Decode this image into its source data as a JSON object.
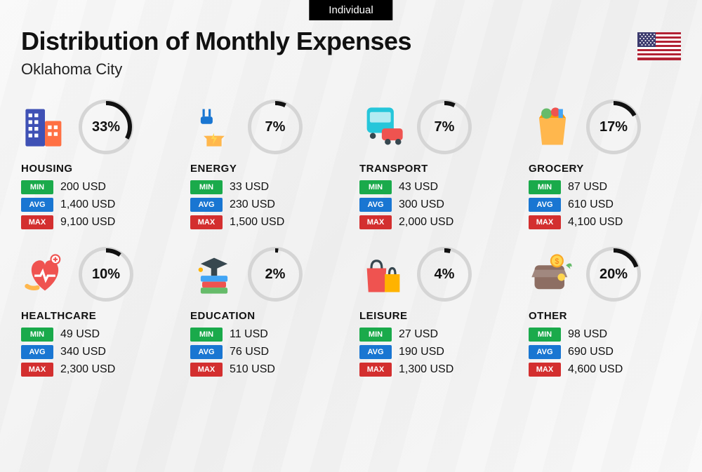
{
  "tab_label": "Individual",
  "title": "Distribution of Monthly Expenses",
  "subtitle": "Oklahoma City",
  "badge_labels": {
    "min": "MIN",
    "avg": "AVG",
    "max": "MAX"
  },
  "colors": {
    "ring_bg": "#d5d5d5",
    "ring_fg": "#111111",
    "badge_min": "#1aaa4b",
    "badge_avg": "#1976d2",
    "badge_max": "#d32f2f"
  },
  "categories": [
    {
      "name": "HOUSING",
      "pct": 33,
      "min": "200 USD",
      "avg": "1,400 USD",
      "max": "9,100 USD"
    },
    {
      "name": "ENERGY",
      "pct": 7,
      "min": "33 USD",
      "avg": "230 USD",
      "max": "1,500 USD"
    },
    {
      "name": "TRANSPORT",
      "pct": 7,
      "min": "43 USD",
      "avg": "300 USD",
      "max": "2,000 USD"
    },
    {
      "name": "GROCERY",
      "pct": 17,
      "min": "87 USD",
      "avg": "610 USD",
      "max": "4,100 USD"
    },
    {
      "name": "HEALTHCARE",
      "pct": 10,
      "min": "49 USD",
      "avg": "340 USD",
      "max": "2,300 USD"
    },
    {
      "name": "EDUCATION",
      "pct": 2,
      "min": "11 USD",
      "avg": "76 USD",
      "max": "510 USD"
    },
    {
      "name": "LEISURE",
      "pct": 4,
      "min": "27 USD",
      "avg": "190 USD",
      "max": "1,300 USD"
    },
    {
      "name": "OTHER",
      "pct": 20,
      "min": "98 USD",
      "avg": "690 USD",
      "max": "4,600 USD"
    }
  ]
}
